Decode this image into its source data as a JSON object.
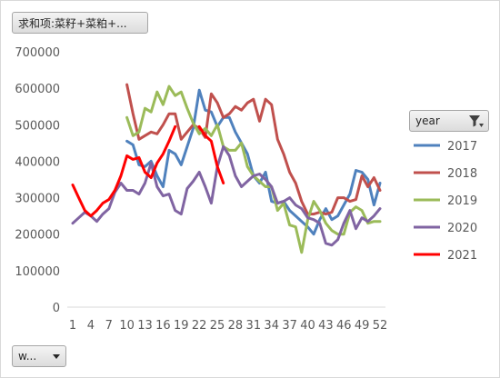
{
  "pivot": {
    "value_field_label": "求和项:菜籽+菜粕+...",
    "axis_field_label": "w...",
    "legend_field_label": "year"
  },
  "chart_data": {
    "type": "line",
    "title": "",
    "xlabel": "",
    "ylabel": "",
    "ylim": [
      0,
      700000
    ],
    "ytick_step": 100000,
    "y_tick_labels": [
      "0",
      "100000",
      "200000",
      "300000",
      "400000",
      "500000",
      "600000",
      "700000"
    ],
    "x_tick_labels": [
      "1",
      "4",
      "7",
      "10",
      "13",
      "16",
      "19",
      "22",
      "25",
      "28",
      "31",
      "34",
      "37",
      "40",
      "43",
      "46",
      "49",
      "52"
    ],
    "x_range": [
      1,
      52
    ],
    "grid": false,
    "legend_position": "right",
    "series": [
      {
        "name": "2017",
        "color": "#4f81bd",
        "x": [
          10,
          11,
          12,
          13,
          14,
          15,
          16,
          17,
          18,
          19,
          20,
          21,
          22,
          23,
          24,
          25,
          26,
          27,
          28,
          29,
          30,
          31,
          32,
          33,
          34,
          35,
          36,
          37,
          38,
          39,
          40,
          41,
          42,
          43,
          44,
          45,
          46,
          47,
          48,
          49,
          50,
          51,
          52
        ],
        "values": [
          455000,
          445000,
          390000,
          385000,
          400000,
          360000,
          330000,
          430000,
          420000,
          390000,
          440000,
          490000,
          595000,
          540000,
          535000,
          495000,
          520000,
          520000,
          480000,
          450000,
          420000,
          360000,
          340000,
          370000,
          290000,
          285000,
          290000,
          265000,
          250000,
          235000,
          220000,
          200000,
          240000,
          270000,
          240000,
          250000,
          280000,
          310000,
          375000,
          370000,
          350000,
          280000,
          340000
        ]
      },
      {
        "name": "2018",
        "color": "#c0504d",
        "x": [
          10,
          11,
          12,
          13,
          14,
          15,
          16,
          17,
          18,
          19,
          20,
          21,
          22,
          23,
          24,
          25,
          26,
          27,
          28,
          29,
          30,
          31,
          32,
          33,
          34,
          35,
          36,
          37,
          38,
          39,
          40,
          41,
          42,
          43,
          44,
          45,
          46,
          47,
          48,
          49,
          50,
          51,
          52
        ],
        "values": [
          610000,
          530000,
          460000,
          470000,
          480000,
          475000,
          500000,
          530000,
          530000,
          460000,
          480000,
          500000,
          490000,
          465000,
          585000,
          560000,
          520000,
          530000,
          550000,
          540000,
          560000,
          570000,
          510000,
          570000,
          555000,
          460000,
          420000,
          370000,
          340000,
          290000,
          255000,
          255000,
          260000,
          255000,
          260000,
          300000,
          300000,
          290000,
          295000,
          360000,
          330000,
          355000,
          320000
        ]
      },
      {
        "name": "2019",
        "color": "#9bbb59",
        "x": [
          10,
          11,
          12,
          13,
          14,
          15,
          16,
          17,
          18,
          19,
          20,
          21,
          22,
          23,
          24,
          25,
          26,
          27,
          28,
          29,
          30,
          31,
          32,
          33,
          34,
          35,
          36,
          37,
          38,
          39,
          40,
          41,
          42,
          43,
          44,
          45,
          46,
          47,
          48,
          49,
          50,
          51,
          52
        ],
        "values": [
          520000,
          470000,
          480000,
          545000,
          535000,
          590000,
          555000,
          605000,
          580000,
          590000,
          545000,
          505000,
          475000,
          490000,
          470000,
          500000,
          440000,
          430000,
          430000,
          450000,
          385000,
          360000,
          345000,
          330000,
          330000,
          265000,
          285000,
          225000,
          220000,
          150000,
          240000,
          290000,
          265000,
          230000,
          210000,
          200000,
          200000,
          260000,
          275000,
          265000,
          230000,
          235000,
          235000
        ]
      },
      {
        "name": "2020",
        "color": "#8064a2",
        "x": [
          1,
          2,
          3,
          4,
          5,
          6,
          7,
          8,
          9,
          10,
          11,
          12,
          13,
          14,
          15,
          16,
          17,
          18,
          19,
          20,
          21,
          22,
          23,
          24,
          25,
          26,
          27,
          28,
          29,
          30,
          31,
          32,
          33,
          34,
          35,
          36,
          37,
          38,
          39,
          40,
          41,
          42,
          43,
          44,
          45,
          46,
          47,
          48,
          49,
          50,
          51,
          52
        ],
        "values": [
          230000,
          245000,
          260000,
          250000,
          235000,
          255000,
          270000,
          315000,
          340000,
          320000,
          320000,
          310000,
          340000,
          395000,
          330000,
          305000,
          310000,
          265000,
          255000,
          325000,
          345000,
          370000,
          330000,
          285000,
          385000,
          440000,
          415000,
          360000,
          330000,
          345000,
          360000,
          365000,
          350000,
          330000,
          285000,
          290000,
          300000,
          280000,
          270000,
          245000,
          240000,
          230000,
          175000,
          170000,
          185000,
          230000,
          265000,
          215000,
          245000,
          235000,
          250000,
          270000
        ]
      },
      {
        "name": "2021",
        "color": "#ff0000",
        "x": [
          1,
          2,
          3,
          4,
          5,
          6,
          7,
          8,
          9,
          10,
          11,
          12,
          13,
          14,
          15,
          16,
          17,
          18,
          19,
          20,
          21,
          22,
          23,
          24,
          25,
          26
        ],
        "values": [
          335000,
          300000,
          265000,
          250000,
          265000,
          285000,
          295000,
          320000,
          360000,
          415000,
          405000,
          410000,
          370000,
          355000,
          395000,
          420000,
          455000,
          495000,
          null,
          null,
          null,
          495000,
          470000,
          455000,
          385000,
          340000
        ]
      }
    ]
  }
}
